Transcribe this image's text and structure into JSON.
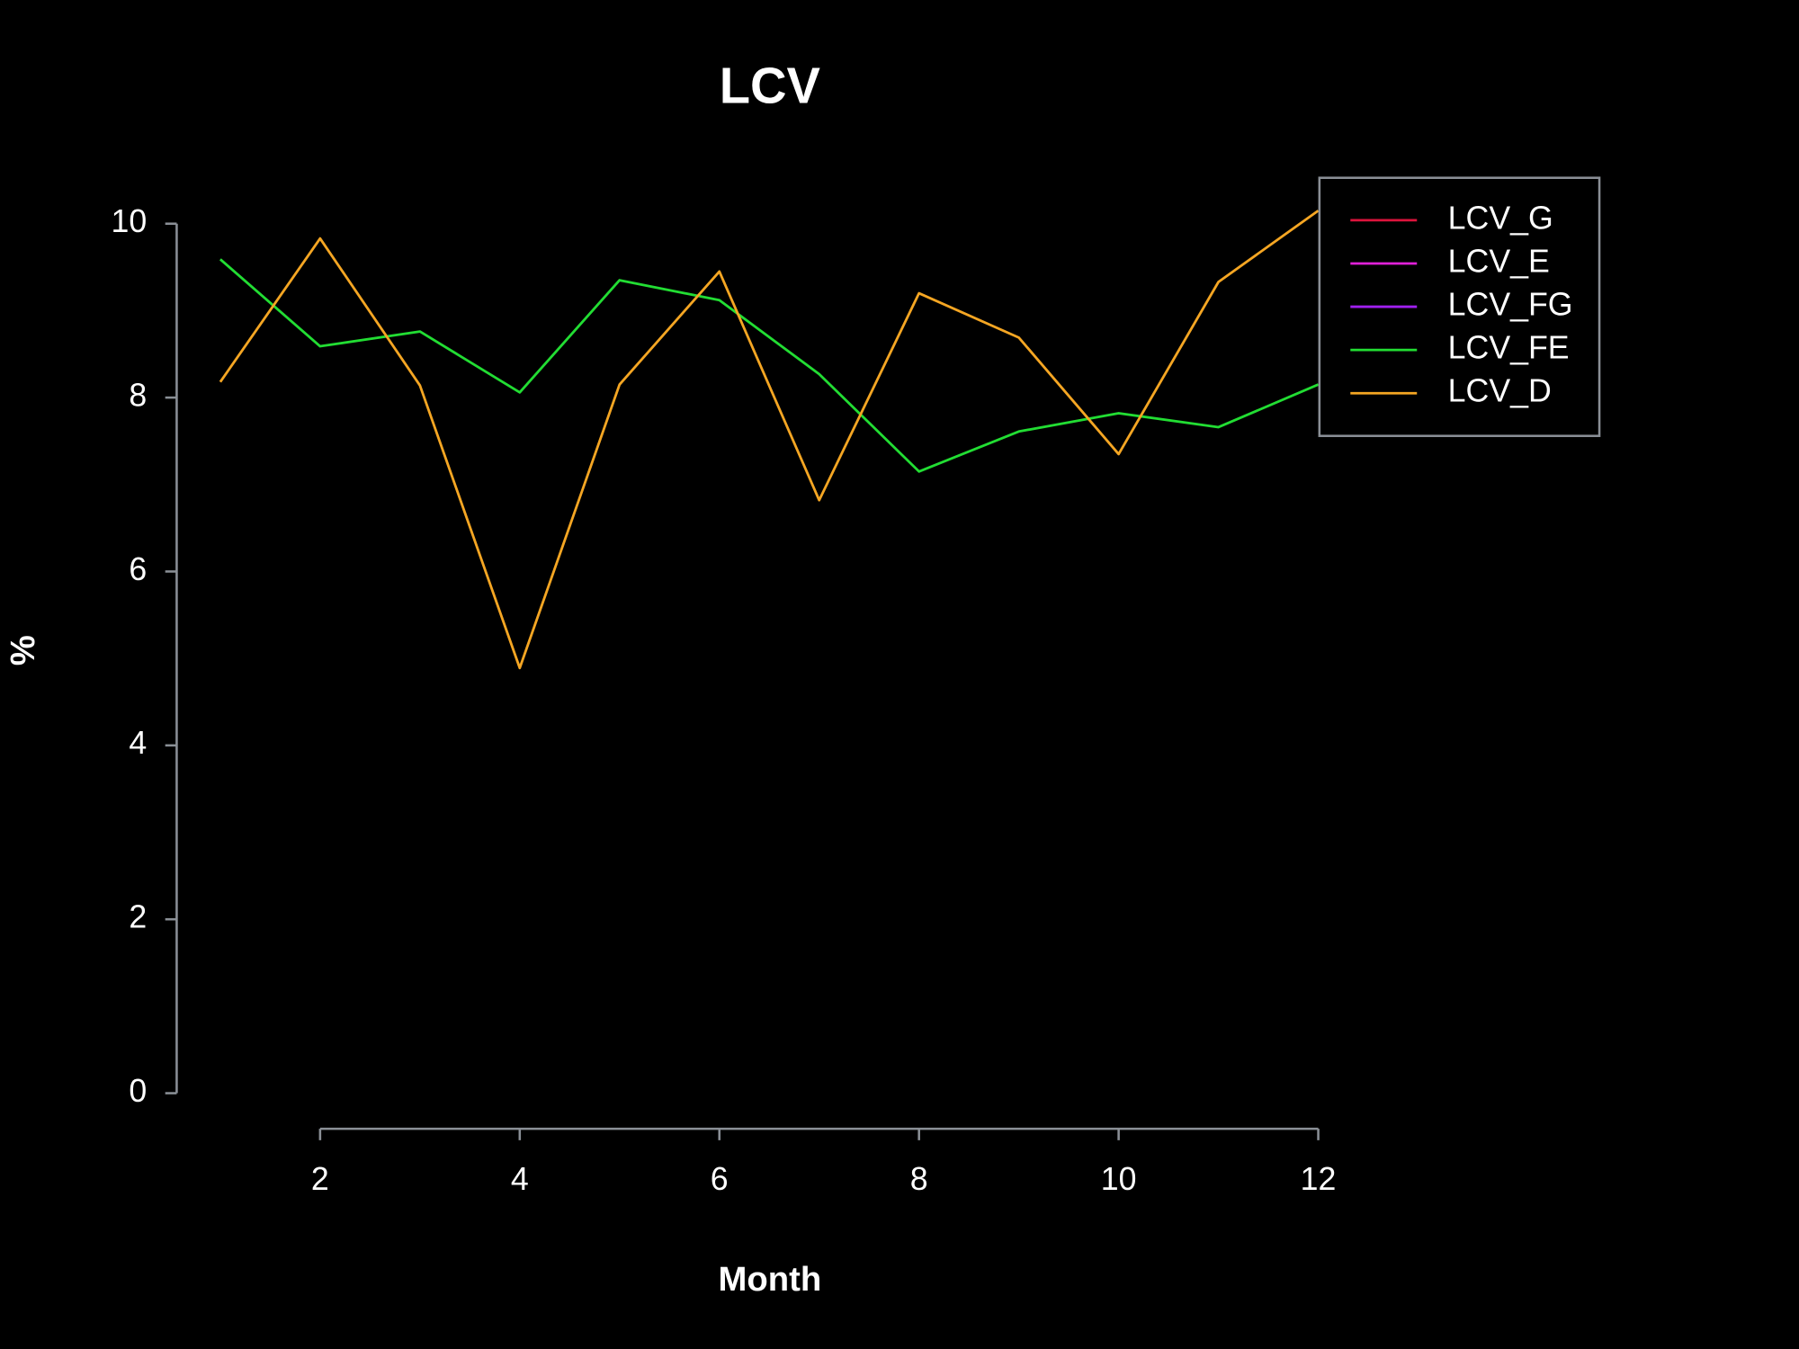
{
  "chart_data": {
    "type": "line",
    "title": "LCV",
    "xlabel": "Month",
    "ylabel": "%",
    "x": [
      1,
      2,
      3,
      4,
      5,
      6,
      7,
      8,
      9,
      10,
      11,
      12
    ],
    "xlim": [
      1,
      12
    ],
    "xticks": [
      2,
      4,
      6,
      8,
      10,
      12
    ],
    "ylim": [
      0,
      10
    ],
    "yticks": [
      0,
      2,
      4,
      6,
      8,
      10
    ],
    "legend": "topright",
    "series": [
      {
        "name": "LCV_G",
        "color": "#dc143c",
        "values": [
          null,
          null,
          null,
          null,
          null,
          null,
          null,
          null,
          null,
          null,
          null,
          null
        ]
      },
      {
        "name": "LCV_E",
        "color": "#e020d8",
        "values": [
          null,
          null,
          null,
          null,
          null,
          null,
          null,
          null,
          null,
          null,
          null,
          null
        ]
      },
      {
        "name": "LCV_FG",
        "color": "#a020f0",
        "values": [
          null,
          null,
          null,
          null,
          null,
          null,
          null,
          null,
          null,
          null,
          null,
          null
        ]
      },
      {
        "name": "LCV_FE",
        "color": "#22dd33",
        "values": [
          9.59,
          8.59,
          8.76,
          8.06,
          9.35,
          9.12,
          8.27,
          7.15,
          7.61,
          7.82,
          7.66,
          8.15
        ]
      },
      {
        "name": "LCV_D",
        "color": "#f5a623",
        "values": [
          8.18,
          9.83,
          8.14,
          4.89,
          8.15,
          9.45,
          6.82,
          9.2,
          8.69,
          7.35,
          9.33,
          10.15
        ]
      }
    ]
  }
}
